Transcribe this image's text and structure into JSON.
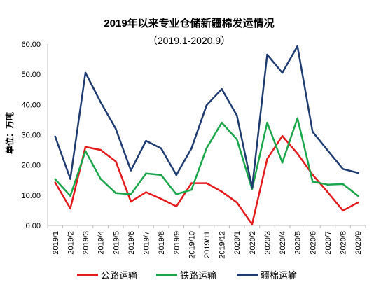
{
  "chart_data": {
    "type": "line",
    "title": "2019年以来专业仓储新疆棉发运情况",
    "subtitle": "（2019.1-2020.9）",
    "ylabel": "单位：万吨",
    "xlabel": "",
    "ylim": [
      0,
      60
    ],
    "yticks": [
      "0.00",
      "10.00",
      "20.00",
      "30.00",
      "40.00",
      "50.00",
      "60.00"
    ],
    "grid": false,
    "legend_position": "bottom",
    "categories": [
      "2019/1",
      "2019/2",
      "2019/3",
      "2019/4",
      "2019/5",
      "2019/6",
      "2019/7",
      "2019/8",
      "2019/9",
      "2019/10",
      "2019/11",
      "2019/12",
      "2020/1",
      "2020/2",
      "2020/3",
      "2020/4",
      "2020/5",
      "2020/6",
      "2020/7",
      "2020/8",
      "2020/9"
    ],
    "series": [
      {
        "name": "公路运输",
        "color": "#e31a1c",
        "values": [
          14.2,
          5.6,
          26.0,
          25.0,
          21.2,
          7.9,
          11.0,
          8.8,
          6.3,
          14.0,
          14.0,
          11.2,
          7.6,
          0.4,
          22.0,
          29.6,
          23.8,
          16.8,
          11.0,
          4.9,
          7.6
        ]
      },
      {
        "name": "铁路运输",
        "color": "#1aa64a",
        "values": [
          15.3,
          9.8,
          24.6,
          15.4,
          10.7,
          10.3,
          17.2,
          16.7,
          10.3,
          11.8,
          25.6,
          34.0,
          28.5,
          12.0,
          34.0,
          20.8,
          35.5,
          14.5,
          13.5,
          13.7,
          9.8
        ]
      },
      {
        "name": "疆棉运输",
        "color": "#1f3c70",
        "values": [
          29.4,
          15.4,
          50.5,
          40.8,
          32.0,
          18.2,
          28.0,
          25.5,
          16.7,
          25.5,
          39.8,
          45.1,
          36.4,
          12.5,
          56.5,
          50.5,
          59.3,
          31.0,
          24.8,
          18.7,
          17.4
        ]
      }
    ]
  }
}
